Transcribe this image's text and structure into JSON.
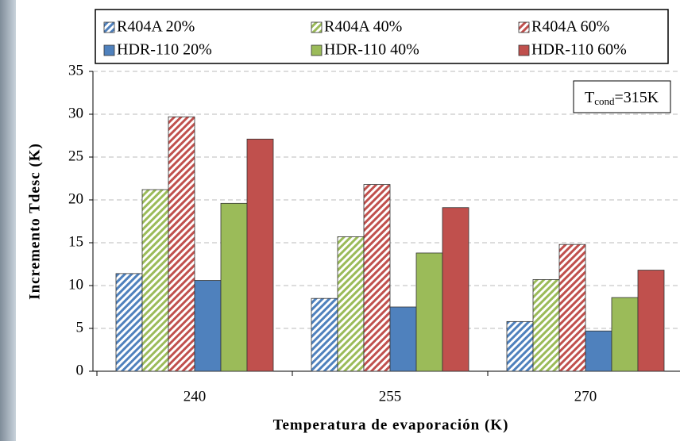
{
  "chart_data": {
    "type": "bar",
    "annotation": {
      "main": "T",
      "sub": "cond",
      "rest": "=315K"
    },
    "x_label": "Temperatura de evaporación (K)",
    "y_label": "Incremento Tdesc (K)",
    "categories": [
      "240",
      "255",
      "270"
    ],
    "series": [
      {
        "name": "R404A 20%",
        "color": "#4f81bd",
        "hatch": true,
        "values": [
          11.4,
          8.5,
          5.8
        ]
      },
      {
        "name": "R404A 40%",
        "color": "#9bbb59",
        "hatch": true,
        "values": [
          21.2,
          15.7,
          10.7
        ]
      },
      {
        "name": "R404A 60%",
        "color": "#c0504d",
        "hatch": true,
        "values": [
          29.7,
          21.8,
          14.8
        ]
      },
      {
        "name": "HDR-110 20%",
        "color": "#4f81bd",
        "hatch": false,
        "values": [
          10.6,
          7.5,
          4.7
        ]
      },
      {
        "name": "HDR-110 40%",
        "color": "#9bbb59",
        "hatch": false,
        "values": [
          19.6,
          13.8,
          8.6
        ]
      },
      {
        "name": "HDR-110 60%",
        "color": "#c0504d",
        "hatch": false,
        "values": [
          27.1,
          19.1,
          11.8
        ]
      }
    ],
    "ylim": [
      0,
      35
    ],
    "yticks": [
      0,
      5,
      10,
      15,
      20,
      25,
      30,
      35
    ],
    "grid": true
  }
}
